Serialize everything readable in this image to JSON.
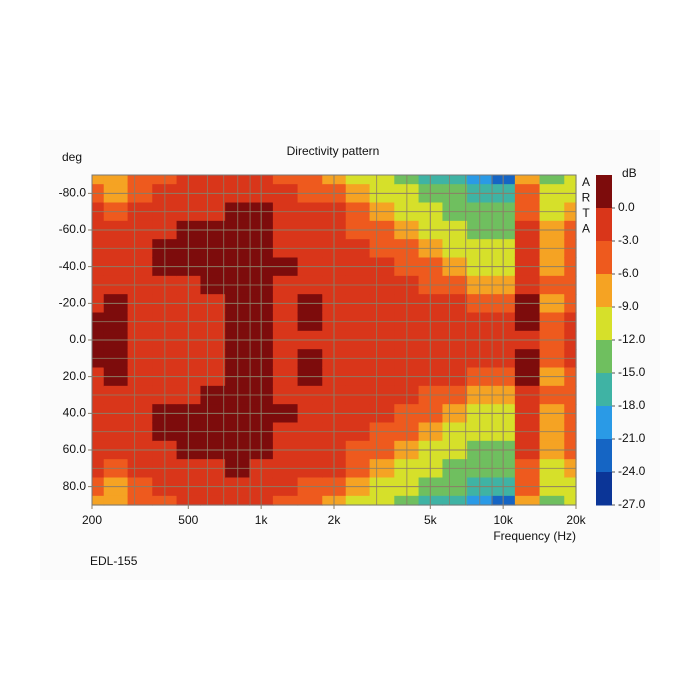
{
  "chart_data": {
    "type": "heatmap",
    "title": "Directivity pattern",
    "y_label": "deg",
    "x_label": "Frequency (Hz)",
    "footer": "EDL-155",
    "watermark": [
      "A",
      "R",
      "T",
      "A"
    ],
    "colorbar_label": "dB",
    "x_log": true,
    "y_inverted": true,
    "xlim": [
      200,
      20000
    ],
    "ylim": [
      -90,
      90
    ],
    "xticks": [
      200,
      500,
      {
        "value": 1000,
        "label": "1k"
      },
      {
        "value": 2000,
        "label": "2k"
      },
      {
        "value": 5000,
        "label": "5k"
      },
      {
        "value": 10000,
        "label": "10k"
      },
      {
        "value": 20000,
        "label": "20k"
      }
    ],
    "xminor": [
      300,
      400,
      600,
      700,
      800,
      900,
      3000,
      4000,
      6000,
      7000,
      8000,
      9000
    ],
    "yticks": [
      {
        "value": -80,
        "label": "-80.0"
      },
      {
        "value": -60,
        "label": "-60.0"
      },
      {
        "value": -40,
        "label": "-40.0"
      },
      {
        "value": -20,
        "label": "-20.0"
      },
      {
        "value": 0,
        "label": "0.0"
      },
      {
        "value": 20,
        "label": "20.0"
      },
      {
        "value": 40,
        "label": "40.0"
      },
      {
        "value": 60,
        "label": "60.0"
      },
      {
        "value": 80,
        "label": "80.0"
      }
    ],
    "yminor": [
      -90,
      -70,
      -50,
      -30,
      -10,
      10,
      30,
      50,
      70,
      90
    ],
    "grid_color": "#8c7d66",
    "colorbar_ticks": [
      {
        "value": 0,
        "label": "0.0"
      },
      {
        "value": -3,
        "label": "-3.0"
      },
      {
        "value": -6,
        "label": "-6.0"
      },
      {
        "value": -9,
        "label": "-9.0"
      },
      {
        "value": -12,
        "label": "-12.0"
      },
      {
        "value": -15,
        "label": "-15.0"
      },
      {
        "value": -18,
        "label": "-18.0"
      },
      {
        "value": -21,
        "label": "-21.0"
      },
      {
        "value": -24,
        "label": "-24.0"
      },
      {
        "value": -27,
        "label": "-27.0"
      }
    ],
    "colors": [
      "#7d0c0c",
      "#d9361a",
      "#ee5a1e",
      "#f5a323",
      "#d6e02a",
      "#6fbf5f",
      "#3fb3a4",
      "#2a9ae6",
      "#1565c4",
      "#0b3597"
    ],
    "x": [
      200,
      250,
      315,
      400,
      500,
      630,
      800,
      1000,
      1250,
      1600,
      2000,
      2500,
      3150,
      4000,
      5000,
      6300,
      8000,
      10000,
      12500,
      16000,
      20000
    ],
    "y": [
      -90,
      -80,
      -70,
      -60,
      -50,
      -40,
      -30,
      -20,
      -10,
      0,
      10,
      20,
      30,
      40,
      50,
      60,
      70,
      80,
      90
    ],
    "z": [
      [
        -8,
        -5,
        -2,
        -2,
        -2,
        -2,
        -2,
        -2,
        1,
        1,
        1,
        -2,
        -2,
        -2,
        -2,
        -2,
        -2,
        -5,
        -8
      ],
      [
        -8,
        -8,
        -5,
        -2,
        -2,
        -2,
        -2,
        1,
        1,
        1,
        1,
        1,
        -2,
        -2,
        -2,
        -2,
        -5,
        -8,
        -8
      ],
      [
        -5,
        -5,
        -2,
        -2,
        -2,
        -2,
        -2,
        -2,
        -2,
        -2,
        -2,
        -2,
        -2,
        -2,
        -2,
        -2,
        -2,
        -5,
        -5
      ],
      [
        -5,
        -2,
        -2,
        -2,
        1,
        1,
        -2,
        -2,
        -2,
        -2,
        -2,
        -2,
        -2,
        1,
        1,
        -2,
        -2,
        -2,
        -5
      ],
      [
        -2,
        -2,
        -2,
        1,
        1,
        1,
        -2,
        -2,
        -2,
        -2,
        -2,
        -2,
        -2,
        1,
        1,
        1,
        -2,
        -2,
        -2
      ],
      [
        -2,
        -2,
        -2,
        1,
        1,
        1,
        1,
        -2,
        -2,
        -2,
        -2,
        -2,
        1,
        1,
        1,
        1,
        -2,
        -2,
        -2
      ],
      [
        -2,
        -2,
        1,
        1,
        1,
        1,
        1,
        1,
        1,
        1,
        1,
        1,
        1,
        1,
        1,
        1,
        1,
        -2,
        -2
      ],
      [
        -2,
        -2,
        1,
        1,
        1,
        1,
        1,
        1,
        1,
        1,
        1,
        1,
        1,
        1,
        1,
        1,
        -2,
        -2,
        -2
      ],
      [
        -5,
        -2,
        -2,
        -2,
        -2,
        1,
        -2,
        -2,
        -2,
        -2,
        -2,
        -2,
        -2,
        1,
        -2,
        -2,
        -2,
        -2,
        -5
      ],
      [
        -5,
        -5,
        -2,
        -2,
        -2,
        -2,
        -2,
        1,
        1,
        -2,
        1,
        1,
        -2,
        -2,
        -2,
        -2,
        -2,
        -5,
        -5
      ],
      [
        -8,
        -5,
        -2,
        -2,
        -2,
        -2,
        -2,
        -2,
        -2,
        -2,
        -2,
        -2,
        -2,
        -2,
        -2,
        -2,
        -2,
        -5,
        -8
      ],
      [
        -11,
        -8,
        -5,
        -5,
        -2,
        -2,
        -2,
        -2,
        -2,
        -2,
        -2,
        -2,
        -2,
        -2,
        -2,
        -5,
        -5,
        -8,
        -11
      ],
      [
        -11,
        -11,
        -8,
        -5,
        -5,
        -2,
        -2,
        -2,
        -2,
        -2,
        -2,
        -2,
        -2,
        -2,
        -5,
        -5,
        -8,
        -11,
        -11
      ],
      [
        -14,
        -11,
        -11,
        -8,
        -5,
        -5,
        -2,
        -2,
        -2,
        -2,
        -2,
        -2,
        -2,
        -5,
        -5,
        -8,
        -11,
        -11,
        -14
      ],
      [
        -17,
        -14,
        -11,
        -11,
        -8,
        -5,
        -5,
        -2,
        -2,
        -2,
        -2,
        -2,
        -5,
        -5,
        -8,
        -11,
        -11,
        -14,
        -17
      ],
      [
        -17,
        -14,
        -14,
        -11,
        -11,
        -8,
        -5,
        -2,
        -2,
        -2,
        -2,
        -2,
        -5,
        -8,
        -11,
        -11,
        -14,
        -14,
        -17
      ],
      [
        -20,
        -17,
        -14,
        -14,
        -11,
        -11,
        -8,
        -5,
        -2,
        -2,
        -2,
        -5,
        -8,
        -11,
        -11,
        -14,
        -14,
        -17,
        -20
      ],
      [
        -23,
        -17,
        -14,
        -14,
        -11,
        -11,
        -8,
        -5,
        -2,
        -2,
        -2,
        -5,
        -8,
        -11,
        -11,
        -14,
        -14,
        -17,
        -23
      ],
      [
        -8,
        -5,
        -5,
        -2,
        -2,
        -2,
        -2,
        1,
        1,
        -2,
        1,
        1,
        -2,
        -2,
        -2,
        -2,
        -5,
        -5,
        -8
      ],
      [
        -14,
        -11,
        -11,
        -8,
        -8,
        -8,
        -5,
        -8,
        -5,
        -5,
        -5,
        -8,
        -5,
        -8,
        -8,
        -8,
        -11,
        -11,
        -14
      ],
      [
        -11,
        -11,
        -8,
        -5,
        -5,
        -5,
        -5,
        -5,
        -2,
        -2,
        -2,
        -5,
        -5,
        -5,
        -5,
        -5,
        -8,
        -11,
        -11
      ]
    ]
  }
}
